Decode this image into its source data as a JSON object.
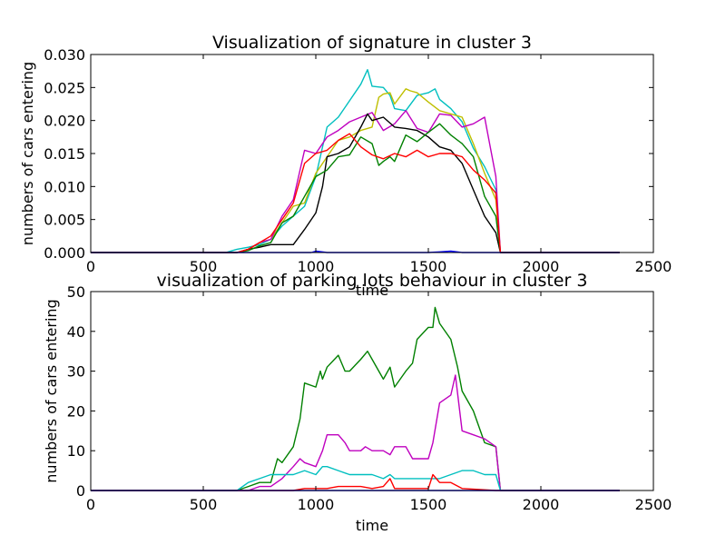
{
  "chart_data": [
    {
      "type": "line",
      "title": "Visualization of signature in cluster 3",
      "xlabel": "time",
      "ylabel": "numbers of cars entering",
      "xlim": [
        0,
        2500
      ],
      "ylim": [
        0,
        0.03
      ],
      "xticks": [
        0,
        500,
        1000,
        1500,
        2000,
        2500
      ],
      "yticks": [
        0.0,
        0.005,
        0.01,
        0.015,
        0.02,
        0.025,
        0.03
      ],
      "xtick_labels": [
        "0",
        "500",
        "1000",
        "1500",
        "2000",
        "2500"
      ],
      "ytick_labels": [
        "0.000",
        "0.005",
        "0.010",
        "0.015",
        "0.020",
        "0.025",
        "0.030"
      ],
      "grid": false,
      "series": [
        {
          "color": "#00bfbf",
          "x": [
            0,
            600,
            650,
            700,
            750,
            800,
            850,
            900,
            950,
            1000,
            1050,
            1100,
            1150,
            1200,
            1230,
            1250,
            1300,
            1330,
            1350,
            1400,
            1450,
            1500,
            1530,
            1550,
            1600,
            1650,
            1700,
            1750,
            1800,
            1820,
            2000,
            2350
          ],
          "y": [
            0,
            0,
            0.0005,
            0.0008,
            0.0012,
            0.002,
            0.004,
            0.0055,
            0.007,
            0.0115,
            0.019,
            0.0205,
            0.023,
            0.0255,
            0.0277,
            0.0252,
            0.025,
            0.0238,
            0.0218,
            0.0215,
            0.0238,
            0.0242,
            0.0248,
            0.0232,
            0.0218,
            0.0198,
            0.0158,
            0.013,
            0.0095,
            0,
            0,
            0
          ]
        },
        {
          "color": "#bfbf00",
          "x": [
            0,
            650,
            700,
            750,
            800,
            850,
            900,
            950,
            1000,
            1050,
            1100,
            1150,
            1200,
            1250,
            1280,
            1300,
            1330,
            1350,
            1400,
            1420,
            1450,
            1500,
            1550,
            1600,
            1650,
            1700,
            1750,
            1800,
            1820,
            2350
          ],
          "y": [
            0,
            0,
            0.0005,
            0.0015,
            0.002,
            0.0045,
            0.007,
            0.0075,
            0.012,
            0.0145,
            0.017,
            0.0175,
            0.0185,
            0.019,
            0.0235,
            0.024,
            0.0242,
            0.0225,
            0.0248,
            0.0245,
            0.0242,
            0.0228,
            0.0215,
            0.021,
            0.0205,
            0.0165,
            0.012,
            0.008,
            0,
            0
          ]
        },
        {
          "color": "#bf00bf",
          "x": [
            0,
            650,
            700,
            750,
            800,
            850,
            900,
            950,
            1000,
            1050,
            1100,
            1150,
            1200,
            1250,
            1300,
            1350,
            1400,
            1450,
            1500,
            1550,
            1600,
            1650,
            1700,
            1750,
            1800,
            1820,
            2350
          ],
          "y": [
            0,
            0,
            0.0005,
            0.0015,
            0.002,
            0.0055,
            0.008,
            0.0155,
            0.015,
            0.0175,
            0.0185,
            0.0198,
            0.0205,
            0.0212,
            0.0185,
            0.0195,
            0.0215,
            0.0188,
            0.0182,
            0.021,
            0.0208,
            0.019,
            0.0195,
            0.0205,
            0.0115,
            0,
            0
          ]
        },
        {
          "color": "#000000",
          "x": [
            0,
            650,
            700,
            750,
            800,
            850,
            900,
            950,
            1000,
            1030,
            1050,
            1100,
            1150,
            1200,
            1230,
            1250,
            1300,
            1350,
            1400,
            1450,
            1500,
            1550,
            1600,
            1650,
            1700,
            1750,
            1800,
            1820,
            2350
          ],
          "y": [
            0,
            0,
            0.0005,
            0.0008,
            0.0012,
            0.0012,
            0.0012,
            0.0035,
            0.006,
            0.01,
            0.0145,
            0.015,
            0.016,
            0.019,
            0.021,
            0.02,
            0.0205,
            0.019,
            0.0188,
            0.0185,
            0.0175,
            0.016,
            0.0155,
            0.0135,
            0.0095,
            0.0055,
            0.003,
            0,
            0
          ]
        },
        {
          "color": "#008000",
          "x": [
            0,
            650,
            700,
            750,
            800,
            850,
            900,
            950,
            1000,
            1050,
            1100,
            1150,
            1200,
            1250,
            1280,
            1300,
            1330,
            1350,
            1400,
            1450,
            1500,
            1550,
            1600,
            1650,
            1700,
            1750,
            1800,
            1820,
            2350
          ],
          "y": [
            0,
            0,
            0.0003,
            0.001,
            0.0015,
            0.0045,
            0.0055,
            0.0085,
            0.0115,
            0.0125,
            0.0145,
            0.0148,
            0.0175,
            0.0165,
            0.0132,
            0.0138,
            0.0145,
            0.0138,
            0.0178,
            0.0168,
            0.0182,
            0.0195,
            0.0178,
            0.0165,
            0.0145,
            0.0085,
            0.0055,
            0,
            0
          ]
        },
        {
          "color": "#ff0000",
          "x": [
            0,
            650,
            700,
            750,
            800,
            850,
            900,
            950,
            1000,
            1050,
            1100,
            1150,
            1200,
            1250,
            1300,
            1350,
            1400,
            1450,
            1500,
            1550,
            1600,
            1650,
            1700,
            1750,
            1800,
            1820,
            2350
          ],
          "y": [
            0,
            0,
            0.0005,
            0.0015,
            0.0025,
            0.005,
            0.0075,
            0.0135,
            0.015,
            0.0155,
            0.017,
            0.018,
            0.016,
            0.0148,
            0.0142,
            0.015,
            0.0145,
            0.0155,
            0.0145,
            0.015,
            0.015,
            0.0145,
            0.0125,
            0.011,
            0.009,
            0,
            0
          ]
        },
        {
          "color": "#0000ff",
          "x": [
            0,
            980,
            1000,
            1050,
            1500,
            1550,
            1600,
            1650,
            1800,
            2350
          ],
          "y": [
            0,
            0,
            0.0002,
            0,
            0,
            0.0001,
            0.0002,
            0,
            0,
            0
          ]
        }
      ]
    },
    {
      "type": "line",
      "title": "visualization of parking lots behaviour in cluster 3",
      "xlabel": "time",
      "ylabel": "numbers of cars entering",
      "xlim": [
        0,
        2500
      ],
      "ylim": [
        0,
        50
      ],
      "xticks": [
        0,
        500,
        1000,
        1500,
        2000,
        2500
      ],
      "yticks": [
        0,
        10,
        20,
        30,
        40,
        50
      ],
      "xtick_labels": [
        "0",
        "500",
        "1000",
        "1500",
        "2000",
        "2500"
      ],
      "ytick_labels": [
        "0",
        "10",
        "20",
        "30",
        "40",
        "50"
      ],
      "grid": false,
      "series": [
        {
          "color": "#008000",
          "x": [
            0,
            650,
            700,
            750,
            800,
            830,
            850,
            900,
            930,
            950,
            1000,
            1020,
            1030,
            1050,
            1100,
            1130,
            1150,
            1200,
            1230,
            1250,
            1300,
            1310,
            1330,
            1350,
            1400,
            1430,
            1450,
            1500,
            1520,
            1530,
            1550,
            1600,
            1630,
            1650,
            1700,
            1750,
            1800,
            1820,
            2350
          ],
          "y": [
            0,
            0,
            1,
            2,
            2,
            8,
            7,
            11,
            18,
            27,
            26,
            30,
            28,
            31,
            34,
            30,
            30,
            33,
            35,
            33,
            28,
            29,
            31,
            26,
            30,
            32,
            38,
            41,
            41,
            46,
            42,
            38,
            31,
            25,
            20,
            12,
            11,
            0,
            0
          ]
        },
        {
          "color": "#bf00bf",
          "x": [
            0,
            650,
            700,
            750,
            800,
            850,
            900,
            930,
            950,
            1000,
            1030,
            1050,
            1100,
            1130,
            1150,
            1200,
            1220,
            1250,
            1300,
            1330,
            1350,
            1400,
            1430,
            1450,
            1500,
            1520,
            1550,
            1600,
            1620,
            1650,
            1700,
            1750,
            1800,
            1820,
            2350
          ],
          "y": [
            0,
            0,
            0,
            1,
            1,
            3,
            6,
            8,
            7,
            6,
            10,
            14,
            14,
            12,
            10,
            10,
            11,
            10,
            10,
            9,
            11,
            11,
            8,
            8,
            8,
            12,
            22,
            24,
            29,
            15,
            14,
            13,
            11,
            0,
            0
          ]
        },
        {
          "color": "#00bfbf",
          "x": [
            0,
            650,
            700,
            750,
            800,
            850,
            900,
            950,
            1000,
            1030,
            1050,
            1100,
            1150,
            1200,
            1250,
            1300,
            1330,
            1350,
            1400,
            1450,
            1500,
            1550,
            1600,
            1650,
            1700,
            1750,
            1800,
            1820,
            2350
          ],
          "y": [
            0,
            0,
            2,
            3,
            4,
            4,
            4,
            5,
            4,
            6,
            6,
            5,
            4,
            4,
            4,
            3,
            4,
            3,
            3,
            3,
            3,
            3,
            4,
            5,
            5,
            4,
            4,
            0,
            0
          ]
        },
        {
          "color": "#ff0000",
          "x": [
            0,
            650,
            700,
            900,
            950,
            1000,
            1050,
            1100,
            1150,
            1200,
            1250,
            1300,
            1330,
            1350,
            1400,
            1450,
            1500,
            1520,
            1550,
            1600,
            1650,
            1800,
            2350
          ],
          "y": [
            0,
            0,
            0,
            0,
            0.5,
            0.5,
            0.5,
            1,
            1,
            1,
            0.5,
            1,
            3,
            0.5,
            0.5,
            0.5,
            0.5,
            4,
            2,
            2,
            0.5,
            0,
            0
          ]
        },
        {
          "color": "#0000ff",
          "x": [
            0,
            1000,
            1500,
            2350
          ],
          "y": [
            0,
            0,
            0,
            0
          ]
        }
      ]
    }
  ]
}
